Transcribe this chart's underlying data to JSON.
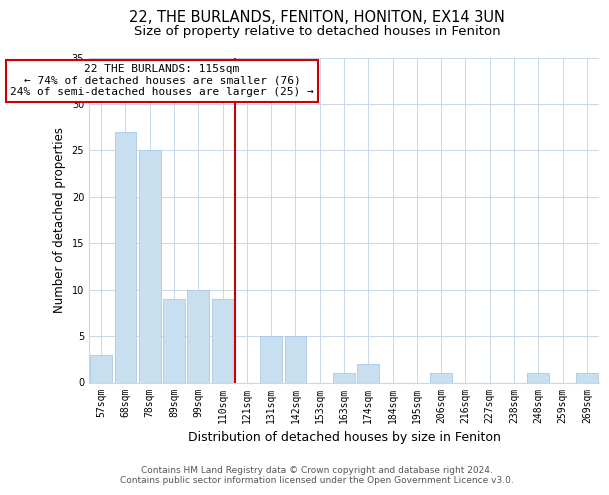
{
  "title": "22, THE BURLANDS, FENITON, HONITON, EX14 3UN",
  "subtitle": "Size of property relative to detached houses in Feniton",
  "xlabel": "Distribution of detached houses by size in Feniton",
  "ylabel": "Number of detached properties",
  "categories": [
    "57sqm",
    "68sqm",
    "78sqm",
    "89sqm",
    "99sqm",
    "110sqm",
    "121sqm",
    "131sqm",
    "142sqm",
    "153sqm",
    "163sqm",
    "174sqm",
    "184sqm",
    "195sqm",
    "206sqm",
    "216sqm",
    "227sqm",
    "238sqm",
    "248sqm",
    "259sqm",
    "269sqm"
  ],
  "values": [
    3,
    27,
    25,
    9,
    10,
    9,
    0,
    5,
    5,
    0,
    1,
    2,
    0,
    0,
    1,
    0,
    0,
    0,
    1,
    0,
    1
  ],
  "bar_color": "#c8dff0",
  "bar_edge_color": "#a8c8e8",
  "ref_line_color": "#cc0000",
  "ref_line_index": 6,
  "annotation_title": "22 THE BURLANDS: 115sqm",
  "annotation_line1": "← 74% of detached houses are smaller (76)",
  "annotation_line2": "24% of semi-detached houses are larger (25) →",
  "annotation_box_facecolor": "#ffffff",
  "annotation_box_edgecolor": "#cc0000",
  "ylim": [
    0,
    35
  ],
  "yticks": [
    0,
    5,
    10,
    15,
    20,
    25,
    30,
    35
  ],
  "footer_line1": "Contains HM Land Registry data © Crown copyright and database right 2024.",
  "footer_line2": "Contains public sector information licensed under the Open Government Licence v3.0.",
  "background_color": "#ffffff",
  "grid_color": "#c8d8e8",
  "title_fontsize": 10.5,
  "subtitle_fontsize": 9.5,
  "ylabel_fontsize": 8.5,
  "xlabel_fontsize": 9,
  "tick_fontsize": 7,
  "annotation_fontsize": 8,
  "footer_fontsize": 6.5
}
